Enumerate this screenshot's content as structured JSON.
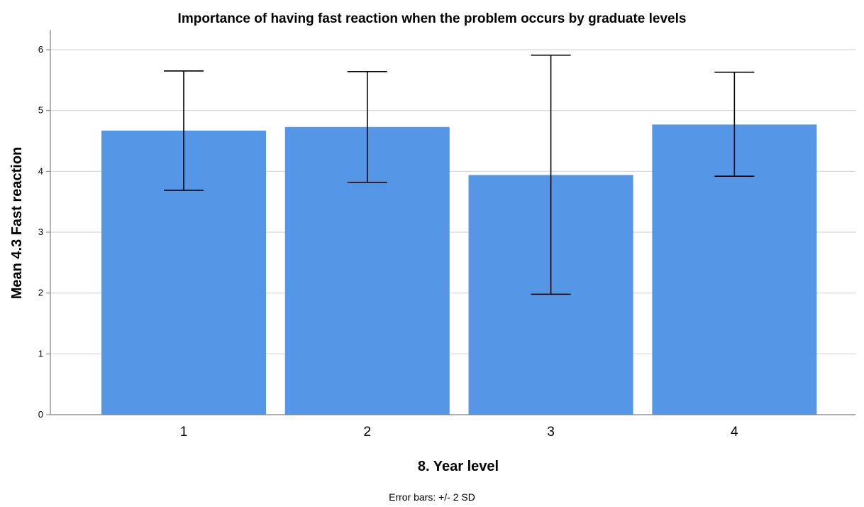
{
  "chart_data": {
    "type": "bar",
    "title": "Importance of having fast reaction when the problem occurs by graduate levels",
    "xlabel": "8. Year level",
    "ylabel": "Mean 4.3 Fast reaction",
    "categories": [
      "1",
      "2",
      "3",
      "4"
    ],
    "values": [
      4.67,
      4.73,
      3.94,
      4.77
    ],
    "error_low": [
      3.69,
      3.82,
      1.98,
      3.92
    ],
    "error_high": [
      5.65,
      5.64,
      5.91,
      5.63
    ],
    "ylim": [
      0,
      6
    ],
    "yticks": [
      "0",
      "1",
      "2",
      "3",
      "4",
      "5",
      "6"
    ],
    "grid": true,
    "footnote": "Error bars: +/- 2 SD",
    "colors": {
      "bar": "#5596e6",
      "grid": "#d6d6d6",
      "axis": "#7f7f7f",
      "errorbar": "#000000"
    }
  }
}
